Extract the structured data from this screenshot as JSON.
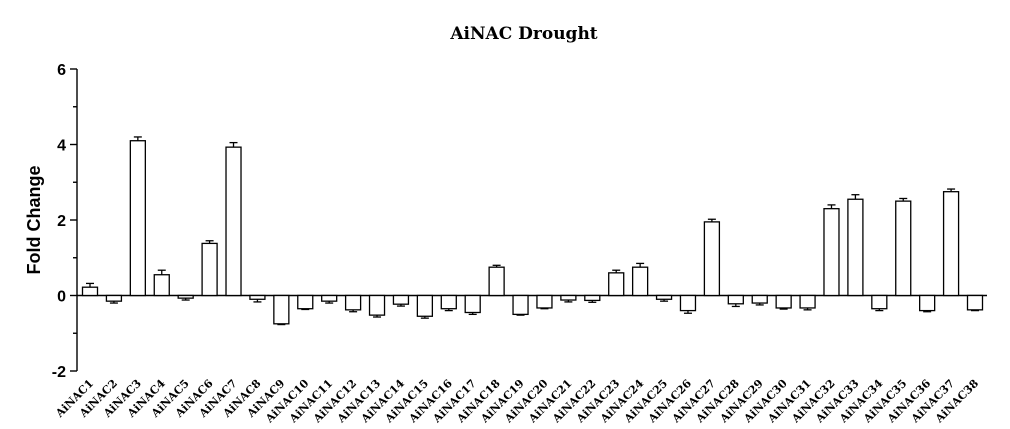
{
  "chart_data": {
    "type": "bar",
    "title": "AiNAC Drought",
    "xlabel": "",
    "ylabel": "Fold Change",
    "ylim": [
      -2,
      6
    ],
    "yticks": [
      -2,
      0,
      2,
      4,
      6
    ],
    "grid": false,
    "categories": [
      "AiNAC1",
      "AiNAC2",
      "AiNAC3",
      "AiNAC4",
      "AiNAC5",
      "AiNAC6",
      "AiNAC7",
      "AiNAC8",
      "AiNAC9",
      "AiNAC10",
      "AiNAC11",
      "AiNAC12",
      "AiNAC13",
      "AiNAC14",
      "AiNAC15",
      "AiNAC16",
      "AiNAC17",
      "AiNAC18",
      "AiNAC19",
      "AiNAC20",
      "AiNAC21",
      "AiNAC22",
      "AiNAC23",
      "AiNAC24",
      "AiNAC25",
      "AiNAC26",
      "AiNAC27",
      "AiNAC28",
      "AiNAC29",
      "AiNAC30",
      "AiNAC31",
      "AiNAC32",
      "AiNAC33",
      "AiNAC34",
      "AiNAC35",
      "AiNAC36",
      "AiNAC37",
      "AiNAC38"
    ],
    "values": [
      0.22,
      -0.15,
      4.1,
      0.55,
      -0.07,
      1.38,
      3.93,
      -0.1,
      -0.75,
      -0.35,
      -0.15,
      -0.38,
      -0.52,
      -0.23,
      -0.55,
      -0.35,
      -0.45,
      0.75,
      -0.5,
      -0.33,
      -0.12,
      -0.13,
      0.6,
      0.75,
      -0.1,
      -0.4,
      1.95,
      -0.22,
      -0.2,
      -0.33,
      -0.33,
      2.3,
      2.55,
      -0.35,
      2.5,
      -0.4,
      2.75,
      -0.38
    ],
    "errors": [
      0.1,
      0.05,
      0.1,
      0.12,
      0.05,
      0.07,
      0.12,
      0.07,
      0.02,
      0.02,
      0.05,
      0.05,
      0.05,
      0.05,
      0.05,
      0.05,
      0.05,
      0.05,
      0.02,
      0.02,
      0.05,
      0.05,
      0.07,
      0.1,
      0.05,
      0.07,
      0.07,
      0.07,
      0.05,
      0.03,
      0.05,
      0.1,
      0.12,
      0.05,
      0.07,
      0.03,
      0.07,
      0.02
    ]
  }
}
